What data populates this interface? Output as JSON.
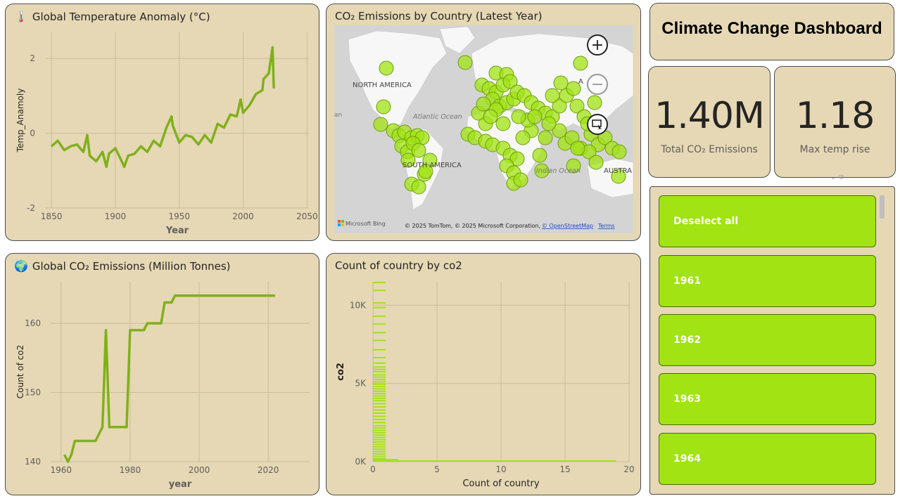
{
  "dashboard": {
    "title": "Climate Change Dashboard"
  },
  "colors": {
    "accent": "#a1e313",
    "line": "#80b01c",
    "panel": "#e6d8b5"
  },
  "kpis": [
    {
      "value": "1.40M",
      "label": "Total CO₂ Emissions"
    },
    {
      "value": "1.18",
      "label": "Max temp rise"
    }
  ],
  "temp_chart": {
    "title": "Global Temperature Anomaly (°C)",
    "icon": "thermometer-icon",
    "chart_data": {
      "type": "line",
      "title": "Global Temperature Anomaly (°C)",
      "xlabel": "Year",
      "ylabel": "Temp_Anamoly",
      "xlim": [
        1845,
        2052
      ],
      "ylim": [
        -2,
        2.7
      ],
      "xticks": [
        "1850",
        "1900",
        "1950",
        "2000",
        "2050"
      ],
      "yticks": [
        "2",
        "0",
        "-2"
      ],
      "series": [
        {
          "x": [
            1850,
            1855,
            1860,
            1865,
            1870,
            1875,
            1878,
            1880,
            1885,
            1890,
            1893,
            1895,
            1900,
            1905,
            1907,
            1910,
            1915,
            1920,
            1925,
            1930,
            1935,
            1940,
            1944,
            1945,
            1950,
            1955,
            1960,
            1965,
            1970,
            1975,
            1980,
            1985,
            1990,
            1995,
            1998,
            2000,
            2005,
            2010,
            2015,
            2016,
            2020,
            2023,
            2024
          ],
          "y": [
            -0.35,
            -0.2,
            -0.45,
            -0.35,
            -0.3,
            -0.5,
            -0.05,
            -0.6,
            -0.75,
            -0.5,
            -0.9,
            -0.55,
            -0.4,
            -0.75,
            -0.9,
            -0.6,
            -0.55,
            -0.35,
            -0.5,
            -0.2,
            -0.35,
            0.15,
            0.45,
            0.2,
            -0.25,
            -0.05,
            -0.1,
            -0.3,
            -0.05,
            -0.25,
            0.25,
            0.15,
            0.5,
            0.45,
            0.9,
            0.55,
            0.75,
            1.05,
            1.15,
            1.45,
            1.6,
            2.3,
            1.2
          ]
        }
      ]
    }
  },
  "map": {
    "title": "CO₂ Emissions by Country (Latest Year)",
    "labels": [
      "NORTH AMERICA",
      "Atlantic Ocean",
      "SOUTH AMERICA",
      "Indian Ocean",
      "AUSTRA",
      "an",
      "A"
    ],
    "attribution": "© 2025 TomTom, © 2025 Microsoft Corporation,",
    "osm_link": "© OpenStreetMap",
    "terms_link": "Terms",
    "brand": "Microsoft Bing",
    "zoom_in": "+",
    "zoom_out": "−"
  },
  "co2_chart": {
    "title": "Global CO₂ Emissions (Million Tonnes)",
    "icon": "globe-icon",
    "chart_data": {
      "type": "line",
      "title": "Global CO₂ Emissions (Million Tonnes)",
      "xlabel": "year",
      "ylabel": "Count of co2",
      "xlim": [
        1957,
        2032
      ],
      "ylim": [
        140,
        166
      ],
      "xticks": [
        "1960",
        "1980",
        "2000",
        "2020"
      ],
      "yticks": [
        "160",
        "150",
        "140"
      ],
      "series": [
        {
          "x": [
            1961,
            1962,
            1963,
            1964,
            1965,
            1970,
            1971,
            1972,
            1973,
            1974,
            1979,
            1980,
            1984,
            1985,
            1989,
            1990,
            1992,
            1993,
            2000,
            2010,
            2022
          ],
          "y": [
            141,
            140,
            141,
            143,
            143,
            143,
            144,
            145,
            159,
            145,
            145,
            159,
            159,
            160,
            160,
            163,
            163,
            164,
            164,
            164,
            164
          ]
        }
      ]
    }
  },
  "count_chart": {
    "title": "Count of country by co2",
    "chart_data": {
      "type": "bar",
      "title": "Count of country by co2",
      "xlabel": "Count of country",
      "ylabel": "co2",
      "xlim": [
        0,
        20
      ],
      "ylim": [
        0,
        11500
      ],
      "xticks": [
        "0",
        "5",
        "10",
        "15",
        "20"
      ],
      "yticks": [
        "10K",
        "5K",
        "0K"
      ],
      "y": [
        11450,
        10950,
        10150,
        9850,
        9300,
        8800,
        8250,
        7750,
        7150,
        6650,
        6300,
        6050,
        5900,
        5750,
        5550,
        5400,
        5250,
        5100,
        4950,
        4800,
        4650,
        4500,
        4350,
        4200,
        4050,
        3900,
        3700,
        3500,
        3300,
        3100,
        2900,
        2700,
        2500,
        2300,
        2150,
        2000,
        1850,
        1700,
        1550,
        1400,
        1250,
        1100,
        950,
        800,
        650,
        500,
        350,
        200,
        120,
        40
      ],
      "values": [
        1,
        1,
        1,
        1,
        1,
        1,
        1,
        1,
        1,
        1,
        1,
        1,
        1,
        1,
        1,
        1,
        1,
        1,
        1,
        1,
        1,
        1,
        1,
        1,
        1,
        1,
        1,
        1,
        1,
        1,
        1,
        1,
        1,
        1,
        1,
        1,
        1,
        1,
        1,
        1,
        1,
        1,
        1,
        1,
        1,
        1,
        1,
        1,
        2,
        19
      ]
    }
  },
  "slicer": {
    "items": [
      {
        "label": "Deselect all"
      },
      {
        "label": "1961"
      },
      {
        "label": "1962"
      },
      {
        "label": "1963"
      },
      {
        "label": "1964"
      }
    ]
  }
}
